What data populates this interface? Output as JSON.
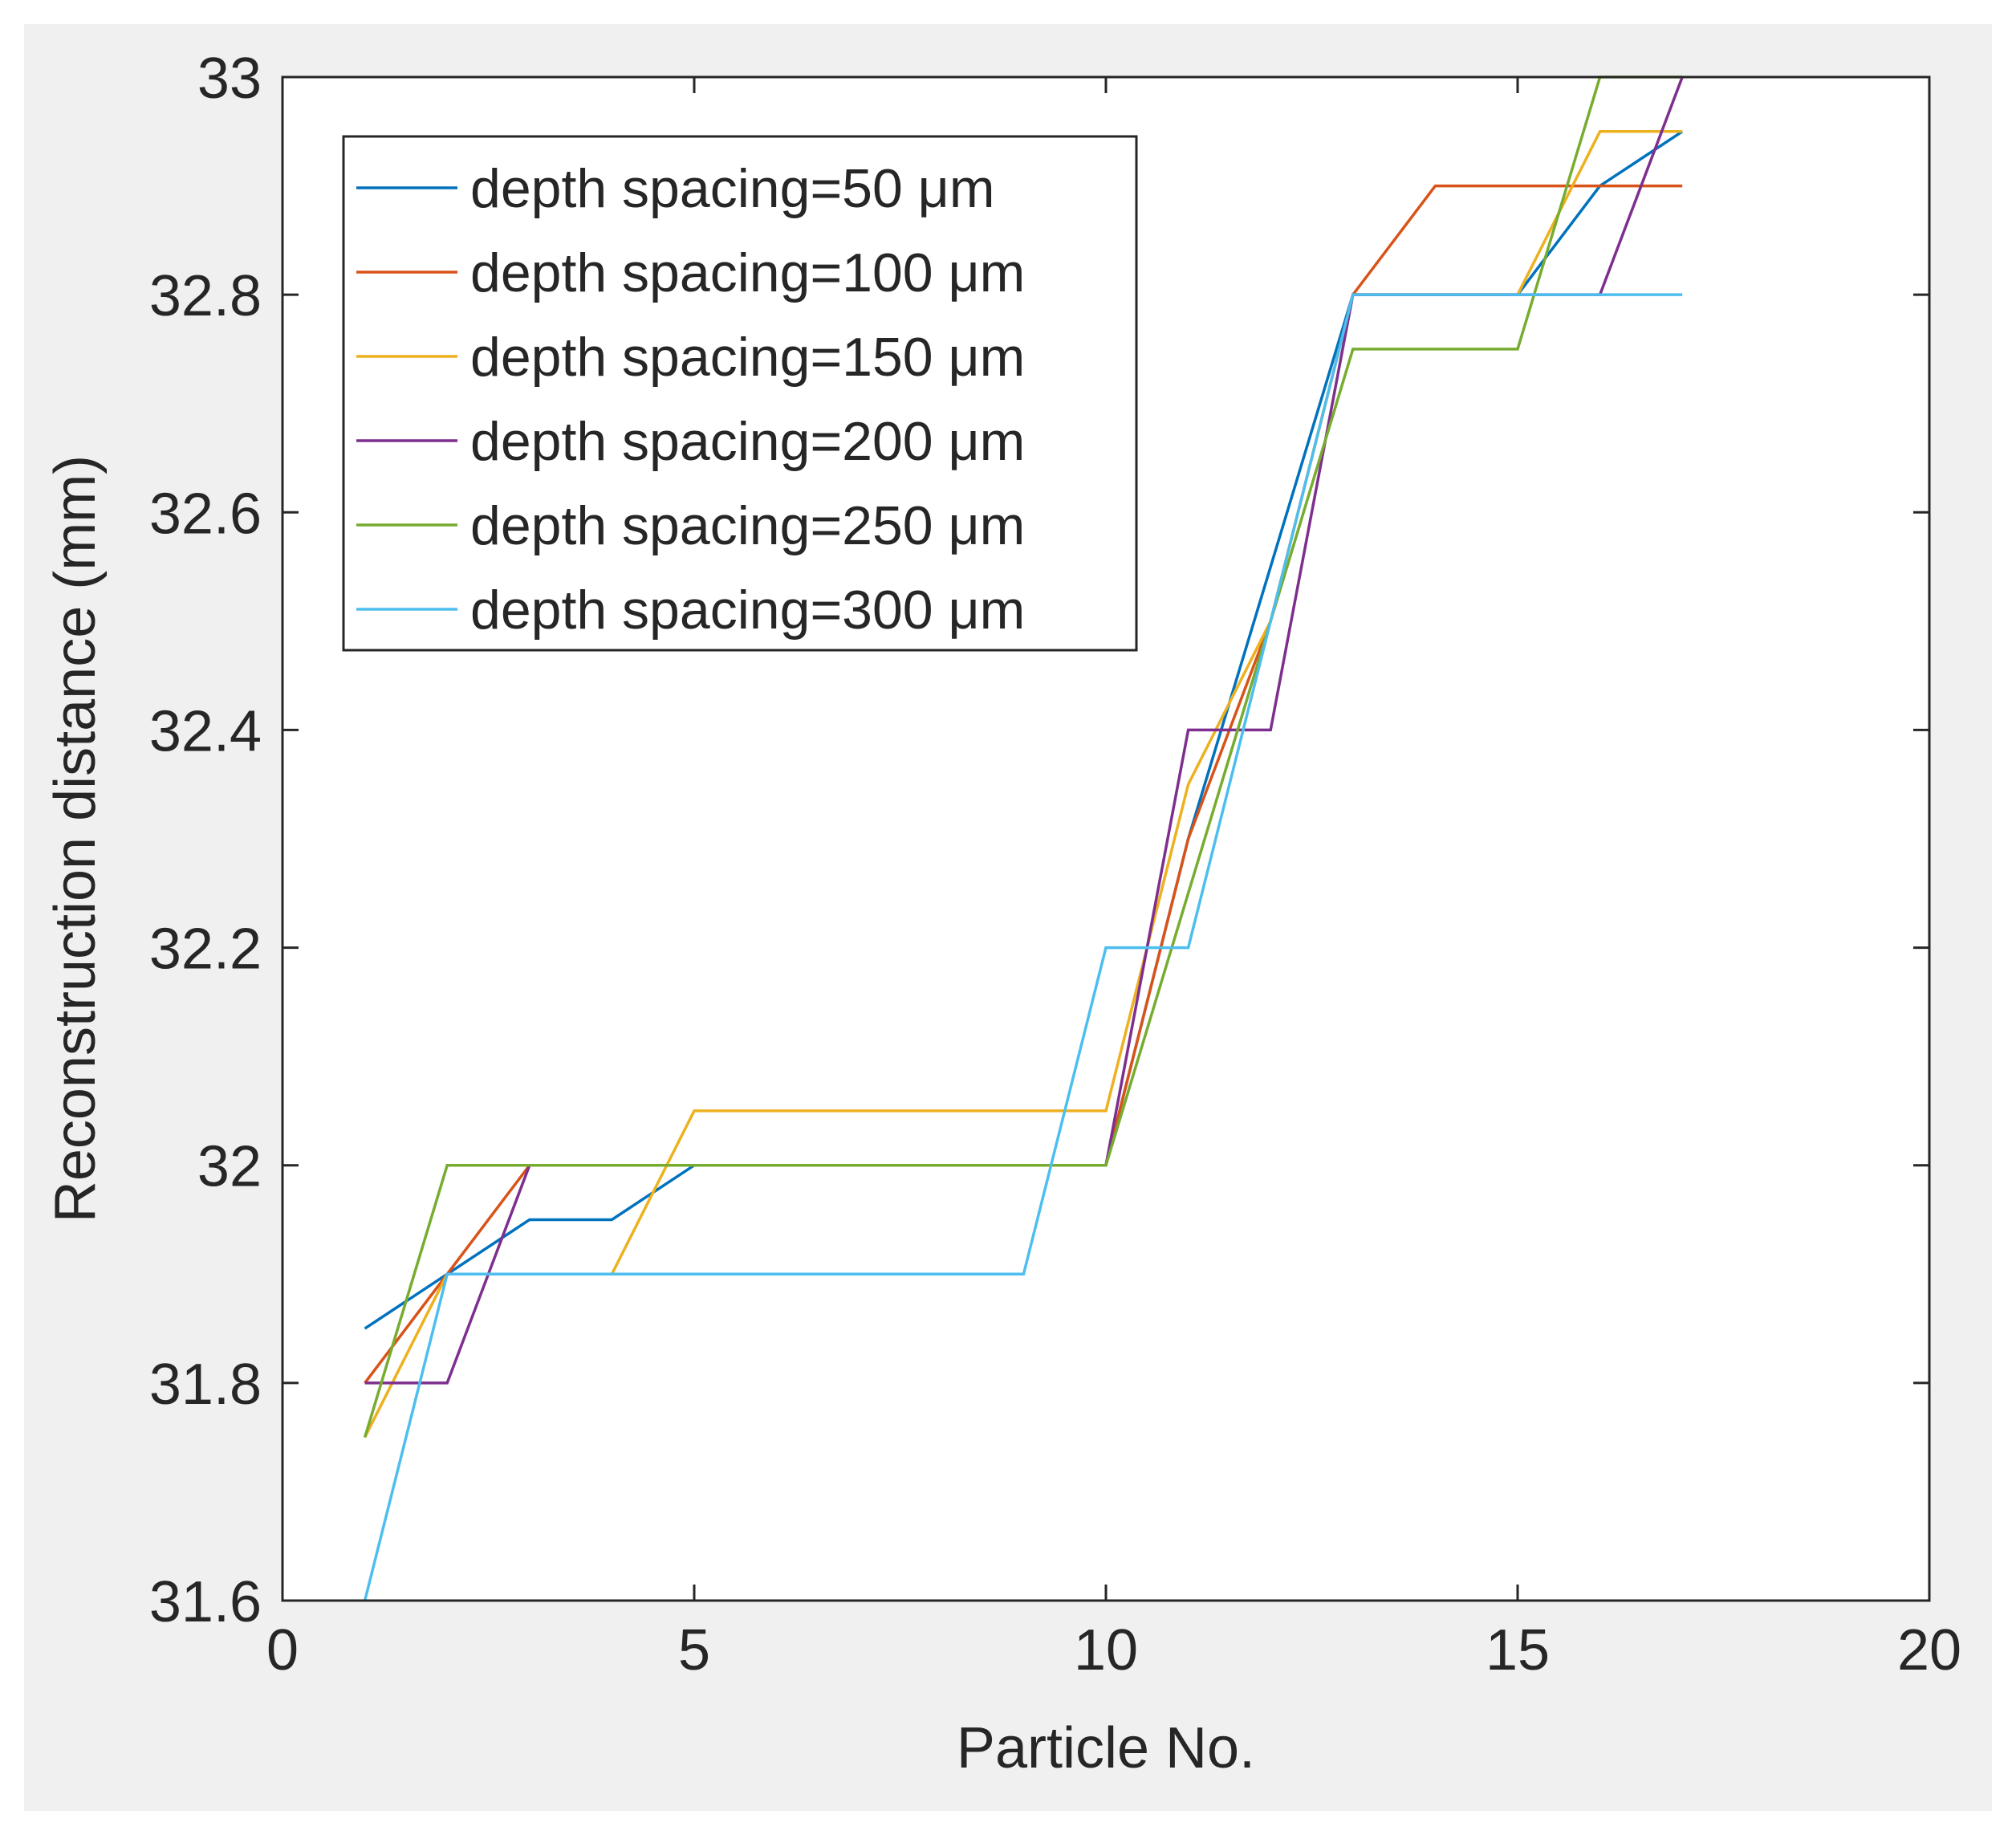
{
  "chart_data": {
    "type": "line",
    "title": "",
    "xlabel": "Particle No.",
    "ylabel": "Reconstruction distance (mm)",
    "xlim": [
      0,
      20
    ],
    "ylim": [
      31.6,
      33
    ],
    "xticks": [
      "0",
      "5",
      "10",
      "15",
      "20"
    ],
    "yticks": [
      "31.6",
      "31.8",
      "32",
      "32.2",
      "32.4",
      "32.6",
      "32.8",
      "33"
    ],
    "legend_position": "top-left",
    "x": [
      1,
      2,
      3,
      4,
      5,
      6,
      7,
      8,
      9,
      10,
      11,
      12,
      13,
      14,
      15,
      16,
      17
    ],
    "series": [
      {
        "name": "depth spacing=50 μm",
        "color": "#0072BD",
        "values": [
          31.85,
          31.9,
          31.95,
          31.95,
          32.0,
          32.0,
          32.0,
          32.0,
          32.0,
          32.0,
          32.3,
          32.55,
          32.8,
          32.8,
          32.8,
          32.9,
          32.95
        ]
      },
      {
        "name": "depth spacing=100 μm",
        "color": "#D95319",
        "values": [
          31.8,
          31.9,
          32.0,
          32.0,
          32.0,
          32.0,
          32.0,
          32.0,
          32.0,
          32.0,
          32.3,
          32.5,
          32.8,
          32.9,
          32.9,
          32.9,
          32.9
        ]
      },
      {
        "name": "depth spacing=150 μm",
        "color": "#EDB120",
        "values": [
          31.75,
          31.9,
          31.9,
          31.9,
          32.05,
          32.05,
          32.05,
          32.05,
          32.05,
          32.05,
          32.35,
          32.5,
          32.8,
          32.8,
          32.8,
          32.95,
          32.95
        ]
      },
      {
        "name": "depth spacing=200 μm",
        "color": "#7E2F8E",
        "values": [
          31.8,
          31.8,
          32.0,
          32.0,
          32.0,
          32.0,
          32.0,
          32.0,
          32.0,
          32.0,
          32.4,
          32.4,
          32.8,
          32.8,
          32.8,
          32.8,
          33.0
        ]
      },
      {
        "name": "depth spacing=250 μm",
        "color": "#77AC30",
        "values": [
          31.75,
          32.0,
          32.0,
          32.0,
          32.0,
          32.0,
          32.0,
          32.0,
          32.0,
          32.0,
          32.25,
          32.5,
          32.75,
          32.75,
          32.75,
          33.0,
          33.0
        ]
      },
      {
        "name": "depth spacing=300 μm",
        "color": "#4DBEEE",
        "values": [
          31.6,
          31.9,
          31.9,
          31.9,
          31.9,
          31.9,
          31.9,
          31.9,
          31.9,
          32.2,
          32.2,
          32.5,
          32.8,
          32.8,
          32.8,
          32.8,
          32.8
        ]
      }
    ]
  }
}
